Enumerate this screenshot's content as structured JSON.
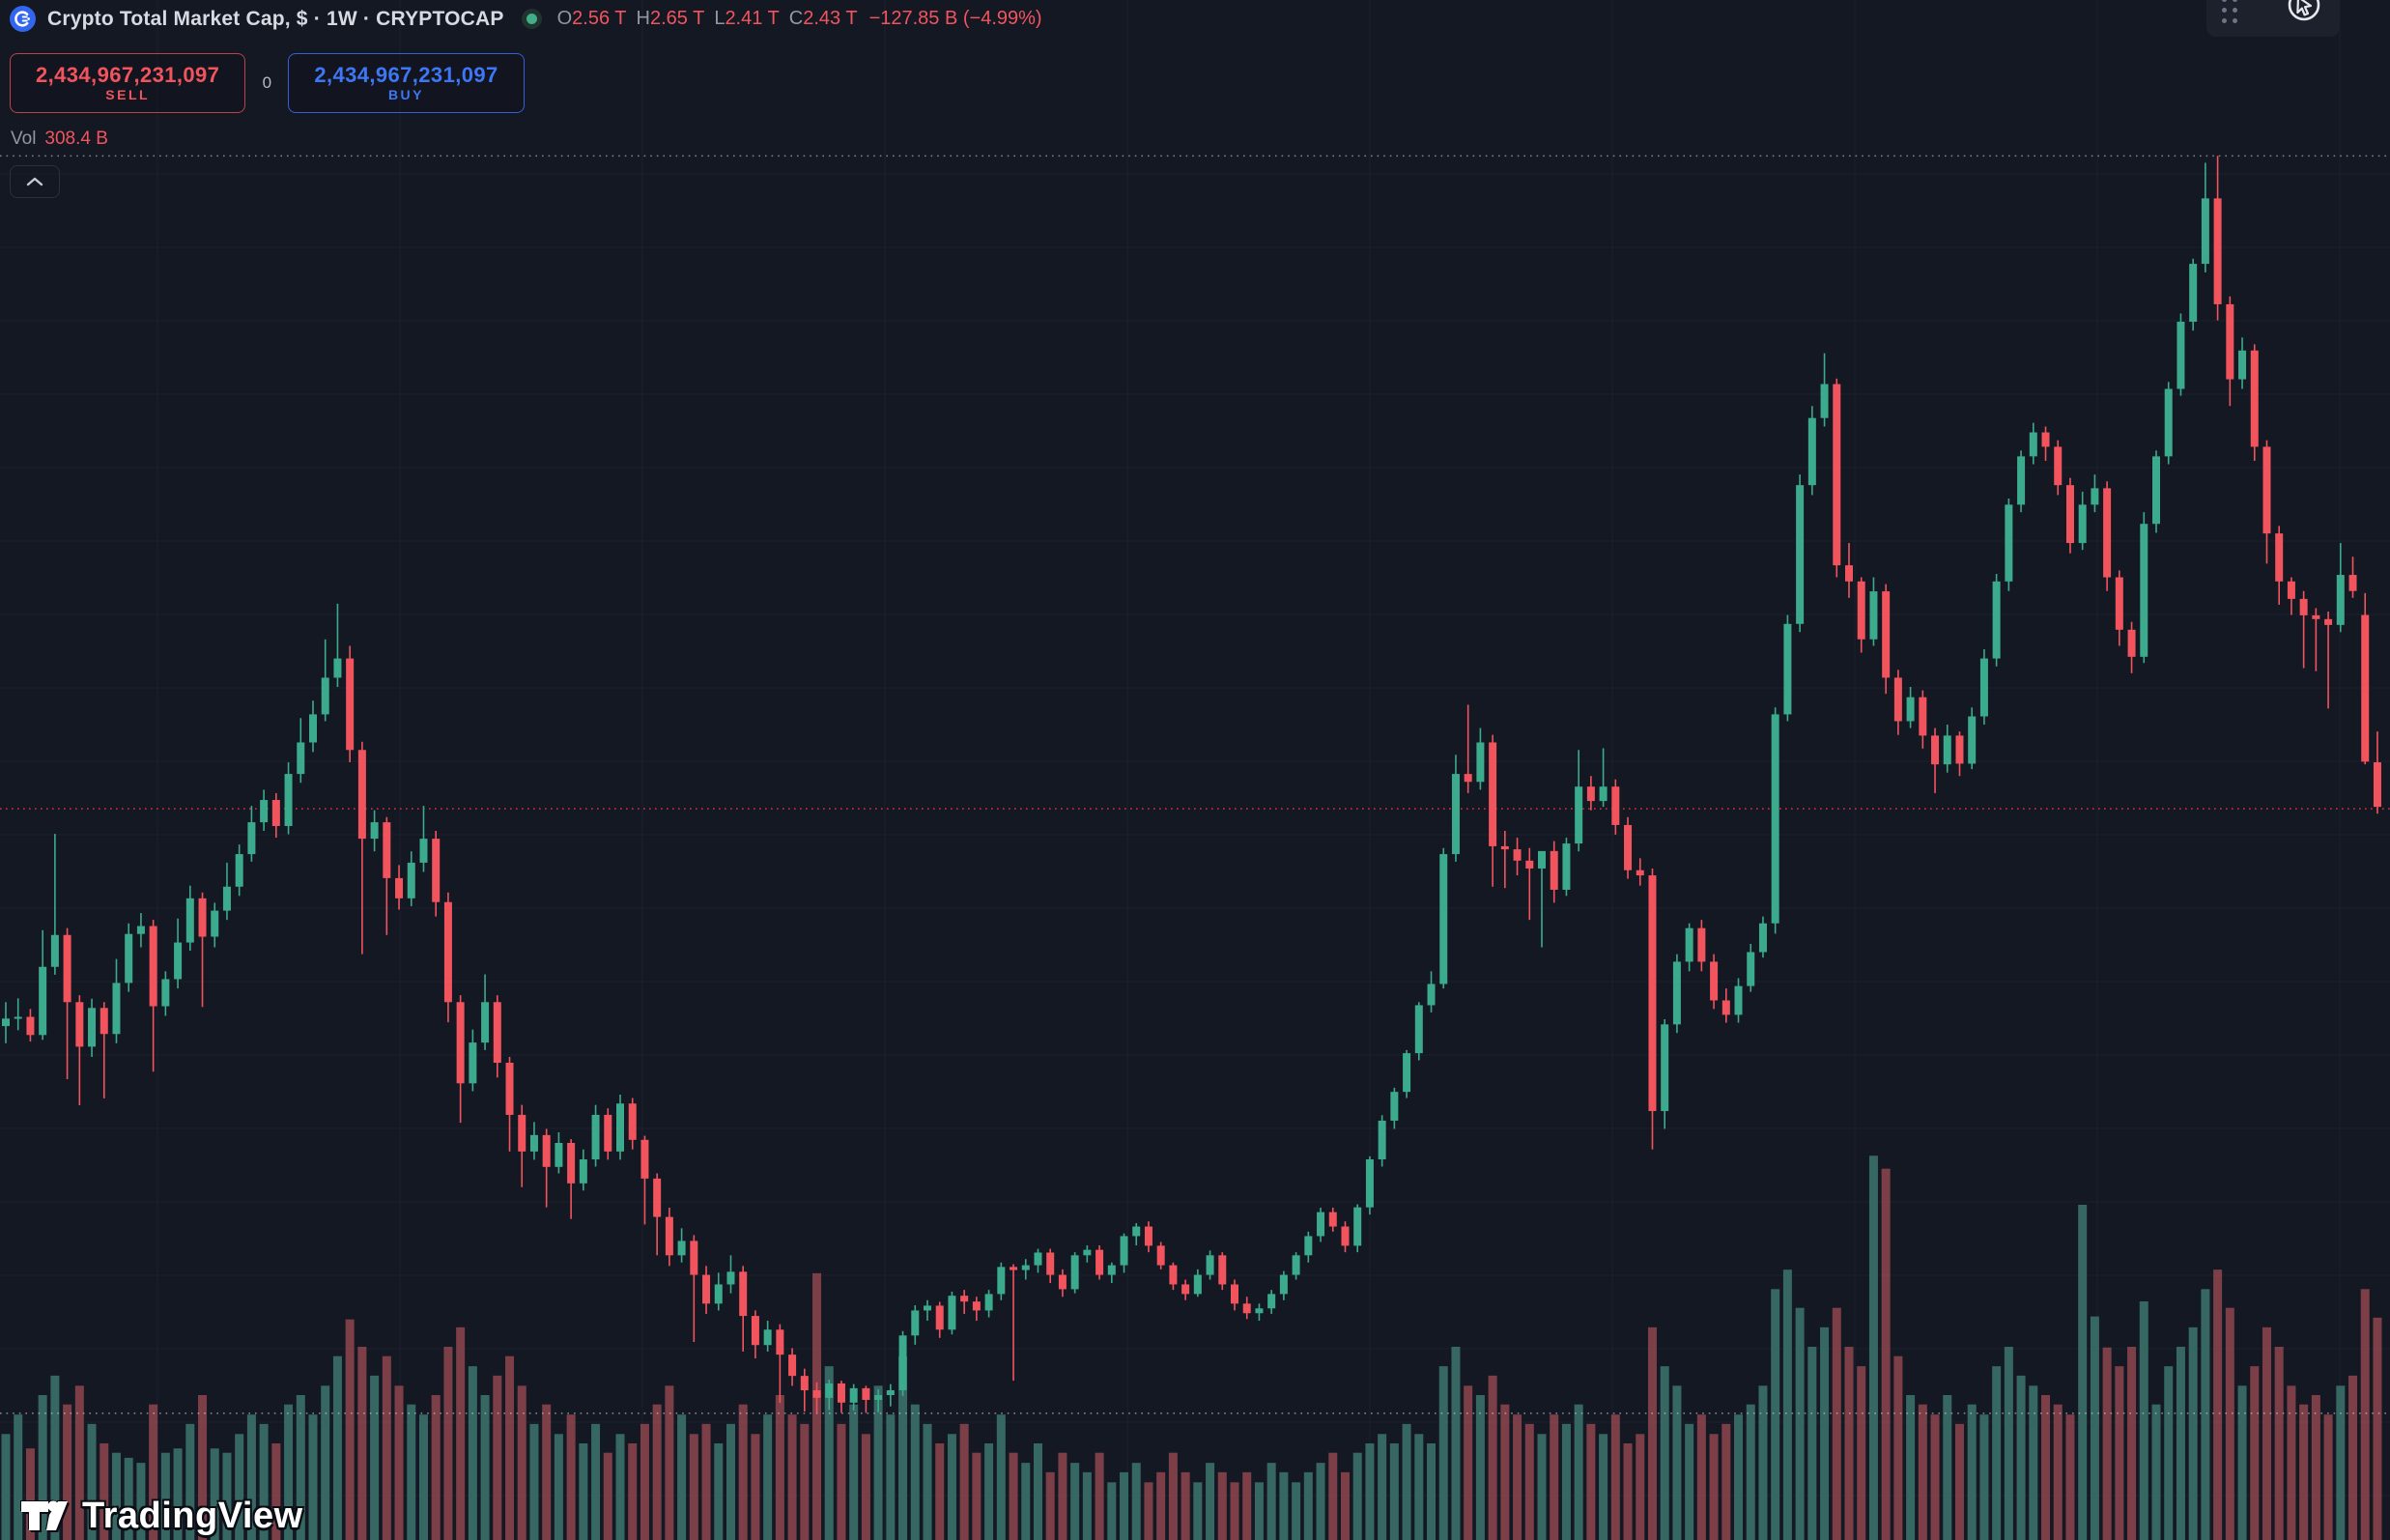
{
  "header": {
    "symbol_title": "Crypto Total Market Cap, $ · 1W · CRYPTOCAP",
    "ohlc": {
      "o_label": "O",
      "o": "2.56 T",
      "h_label": "H",
      "h": "2.65 T",
      "l_label": "L",
      "l": "2.41 T",
      "c_label": "C",
      "c": "2.43 T",
      "change": "−127.85 B (−4.99%)"
    }
  },
  "trade_panel": {
    "sell_value": "2,434,967,231,097",
    "sell_label": "SELL",
    "spread": "0",
    "buy_value": "2,434,967,231,097",
    "buy_label": "BUY"
  },
  "volume_row": {
    "label": "Vol",
    "value": "308.4 B"
  },
  "watermark": {
    "text": "TradingView"
  },
  "colors": {
    "background": "#141823",
    "grid": "rgba(170,180,210,0.06)",
    "up": "#3cab8d",
    "down": "#f2545e",
    "vol_up": "#3a6f68",
    "vol_down": "#86434b",
    "close_line": "#f23645",
    "range_line": "rgba(215,220,232,0.55)",
    "accent_buy": "#3d77f5",
    "accent_sell": "#f2545e"
  },
  "chart_data": {
    "type": "candlestick",
    "title": "Crypto Total Market Cap, $ · 1W · CRYPTOCAP",
    "units": "trillions USD (price), billions USD (volume)",
    "grid": true,
    "legend_position": "none",
    "ylim": [
      0.29,
      4.52
    ],
    "volume_axis_max": 2136,
    "levels": {
      "range_high": 4.33,
      "range_low": 0.66,
      "last_close": 2.43
    },
    "last_bar": {
      "open": 2.56,
      "high": 2.65,
      "low": 2.41,
      "close": 2.43,
      "change_abs": -127.85,
      "change_pct": -4.99,
      "volume_b": 308.4
    },
    "candles": [
      [
        1.79,
        1.86,
        1.74,
        1.812,
        147
      ],
      [
        1.812,
        1.871,
        1.778,
        1.817,
        174
      ],
      [
        1.817,
        1.84,
        1.745,
        1.764,
        127
      ],
      [
        1.764,
        2.07,
        1.75,
        1.963,
        201
      ],
      [
        1.963,
        2.351,
        1.94,
        2.056,
        228
      ],
      [
        2.056,
        2.076,
        1.635,
        1.86,
        188
      ],
      [
        1.86,
        1.88,
        1.559,
        1.73,
        214
      ],
      [
        1.73,
        1.87,
        1.7,
        1.843,
        161
      ],
      [
        1.843,
        1.86,
        1.579,
        1.767,
        134
      ],
      [
        1.767,
        1.986,
        1.74,
        1.916,
        121
      ],
      [
        1.916,
        2.09,
        1.89,
        2.059,
        114
      ],
      [
        2.059,
        2.12,
        2.02,
        2.082,
        107
      ],
      [
        2.082,
        2.1,
        1.657,
        1.848,
        188
      ],
      [
        1.848,
        1.95,
        1.82,
        1.927,
        121
      ],
      [
        1.927,
        2.104,
        1.9,
        2.034,
        127
      ],
      [
        2.034,
        2.2,
        2.01,
        2.163,
        161
      ],
      [
        2.163,
        2.18,
        1.846,
        2.051,
        201
      ],
      [
        2.051,
        2.15,
        2.02,
        2.127,
        127
      ],
      [
        2.127,
        2.267,
        2.1,
        2.197,
        121
      ],
      [
        2.197,
        2.32,
        2.17,
        2.292,
        147
      ],
      [
        2.292,
        2.433,
        2.27,
        2.385,
        174
      ],
      [
        2.385,
        2.48,
        2.36,
        2.45,
        161
      ],
      [
        2.45,
        2.47,
        2.34,
        2.374,
        134
      ],
      [
        2.374,
        2.56,
        2.35,
        2.526,
        188
      ],
      [
        2.526,
        2.689,
        2.5,
        2.618,
        201
      ],
      [
        2.618,
        2.74,
        2.59,
        2.7,
        174
      ],
      [
        2.7,
        2.919,
        2.68,
        2.807,
        214
      ],
      [
        2.807,
        3.023,
        2.78,
        2.863,
        255
      ],
      [
        2.863,
        2.9,
        2.56,
        2.596,
        306
      ],
      [
        2.596,
        2.62,
        2.0,
        2.337,
        268
      ],
      [
        2.337,
        2.42,
        2.3,
        2.385,
        228
      ],
      [
        2.385,
        2.4,
        2.056,
        2.222,
        255
      ],
      [
        2.222,
        2.26,
        2.13,
        2.163,
        214
      ],
      [
        2.163,
        2.3,
        2.14,
        2.267,
        188
      ],
      [
        2.267,
        2.433,
        2.24,
        2.337,
        174
      ],
      [
        2.337,
        2.36,
        2.11,
        2.152,
        201
      ],
      [
        2.152,
        2.18,
        1.801,
        1.86,
        268
      ],
      [
        1.86,
        1.88,
        1.508,
        1.623,
        295
      ],
      [
        1.623,
        1.78,
        1.6,
        1.742,
        241
      ],
      [
        1.742,
        1.941,
        1.72,
        1.86,
        201
      ],
      [
        1.86,
        1.88,
        1.64,
        1.683,
        228
      ],
      [
        1.683,
        1.7,
        1.424,
        1.531,
        255
      ],
      [
        1.531,
        1.56,
        1.32,
        1.424,
        214
      ],
      [
        1.424,
        1.51,
        1.4,
        1.472,
        161
      ],
      [
        1.472,
        1.49,
        1.261,
        1.379,
        188
      ],
      [
        1.379,
        1.48,
        1.36,
        1.449,
        147
      ],
      [
        1.449,
        1.46,
        1.227,
        1.331,
        174
      ],
      [
        1.331,
        1.43,
        1.31,
        1.401,
        134
      ],
      [
        1.401,
        1.56,
        1.38,
        1.531,
        161
      ],
      [
        1.531,
        1.55,
        1.4,
        1.424,
        121
      ],
      [
        1.424,
        1.59,
        1.4,
        1.564,
        147
      ],
      [
        1.564,
        1.58,
        1.43,
        1.458,
        134
      ],
      [
        1.458,
        1.47,
        1.211,
        1.345,
        161
      ],
      [
        1.345,
        1.36,
        1.121,
        1.233,
        188
      ],
      [
        1.233,
        1.26,
        1.09,
        1.121,
        214
      ],
      [
        1.121,
        1.2,
        1.1,
        1.163,
        174
      ],
      [
        1.163,
        1.18,
        0.868,
        1.064,
        147
      ],
      [
        1.064,
        1.09,
        0.95,
        0.98,
        161
      ],
      [
        0.98,
        1.07,
        0.96,
        1.036,
        134
      ],
      [
        1.036,
        1.121,
        1.01,
        1.073,
        161
      ],
      [
        1.073,
        1.09,
        0.84,
        0.944,
        188
      ],
      [
        0.944,
        0.96,
        0.82,
        0.859,
        147
      ],
      [
        0.859,
        0.93,
        0.84,
        0.904,
        174
      ],
      [
        0.904,
        0.92,
        0.69,
        0.831,
        201
      ],
      [
        0.831,
        0.85,
        0.74,
        0.769,
        174
      ],
      [
        0.769,
        0.79,
        0.665,
        0.727,
        161
      ],
      [
        0.727,
        0.75,
        0.662,
        0.705,
        370
      ],
      [
        0.705,
        0.758,
        0.67,
        0.747,
        241
      ],
      [
        0.747,
        0.755,
        0.661,
        0.691,
        161
      ],
      [
        0.691,
        0.745,
        0.668,
        0.733,
        188
      ],
      [
        0.733,
        0.74,
        0.661,
        0.699,
        147
      ],
      [
        0.699,
        0.73,
        0.663,
        0.713,
        214
      ],
      [
        0.713,
        0.745,
        0.68,
        0.727,
        174
      ],
      [
        0.727,
        0.9,
        0.71,
        0.887,
        255
      ],
      [
        0.887,
        0.975,
        0.86,
        0.96,
        188
      ],
      [
        0.96,
        0.99,
        0.93,
        0.974,
        161
      ],
      [
        0.974,
        0.985,
        0.88,
        0.904,
        134
      ],
      [
        0.904,
        1.015,
        0.89,
        1.003,
        147
      ],
      [
        1.003,
        1.02,
        0.95,
        0.986,
        161
      ],
      [
        0.986,
        1.0,
        0.93,
        0.96,
        121
      ],
      [
        0.96,
        1.02,
        0.94,
        1.008,
        134
      ],
      [
        1.008,
        1.1,
        0.99,
        1.087,
        174
      ],
      [
        1.087,
        1.095,
        0.755,
        1.078,
        121
      ],
      [
        1.078,
        1.11,
        1.05,
        1.092,
        107
      ],
      [
        1.092,
        1.14,
        1.07,
        1.129,
        134
      ],
      [
        1.129,
        1.14,
        1.04,
        1.064,
        94
      ],
      [
        1.064,
        1.08,
        1.0,
        1.022,
        121
      ],
      [
        1.022,
        1.13,
        1.01,
        1.121,
        107
      ],
      [
        1.121,
        1.15,
        1.1,
        1.137,
        94
      ],
      [
        1.137,
        1.15,
        1.05,
        1.064,
        121
      ],
      [
        1.064,
        1.1,
        1.04,
        1.092,
        80
      ],
      [
        1.092,
        1.185,
        1.07,
        1.177,
        94
      ],
      [
        1.177,
        1.215,
        1.15,
        1.205,
        107
      ],
      [
        1.205,
        1.22,
        1.13,
        1.149,
        80
      ],
      [
        1.149,
        1.16,
        1.08,
        1.092,
        94
      ],
      [
        1.092,
        1.1,
        1.02,
        1.036,
        121
      ],
      [
        1.036,
        1.05,
        0.99,
        1.008,
        94
      ],
      [
        1.008,
        1.08,
        1.0,
        1.064,
        80
      ],
      [
        1.064,
        1.135,
        1.05,
        1.121,
        107
      ],
      [
        1.121,
        1.13,
        1.02,
        1.036,
        94
      ],
      [
        1.036,
        1.05,
        0.96,
        0.98,
        80
      ],
      [
        0.98,
        1.0,
        0.935,
        0.952,
        94
      ],
      [
        0.952,
        0.98,
        0.93,
        0.966,
        80
      ],
      [
        0.966,
        1.02,
        0.95,
        1.008,
        107
      ],
      [
        1.008,
        1.075,
        0.99,
        1.064,
        94
      ],
      [
        1.064,
        1.13,
        1.05,
        1.121,
        80
      ],
      [
        1.121,
        1.19,
        1.1,
        1.177,
        94
      ],
      [
        1.177,
        1.26,
        1.16,
        1.247,
        107
      ],
      [
        1.247,
        1.26,
        1.19,
        1.205,
        121
      ],
      [
        1.205,
        1.22,
        1.13,
        1.149,
        94
      ],
      [
        1.149,
        1.27,
        1.13,
        1.261,
        121
      ],
      [
        1.261,
        1.41,
        1.24,
        1.401,
        134
      ],
      [
        1.401,
        1.53,
        1.38,
        1.514,
        147
      ],
      [
        1.514,
        1.61,
        1.49,
        1.598,
        134
      ],
      [
        1.598,
        1.72,
        1.58,
        1.711,
        161
      ],
      [
        1.711,
        1.86,
        1.69,
        1.851,
        147
      ],
      [
        1.851,
        1.95,
        1.83,
        1.913,
        134
      ],
      [
        1.913,
        2.31,
        1.9,
        2.292,
        241
      ],
      [
        2.292,
        2.582,
        2.27,
        2.526,
        268
      ],
      [
        2.526,
        2.728,
        2.47,
        2.503,
        214
      ],
      [
        2.503,
        2.66,
        2.48,
        2.618,
        201
      ],
      [
        2.618,
        2.64,
        2.197,
        2.315,
        228
      ],
      [
        2.315,
        2.36,
        2.193,
        2.306,
        188
      ],
      [
        2.306,
        2.34,
        2.23,
        2.273,
        174
      ],
      [
        2.273,
        2.31,
        2.1,
        2.25,
        161
      ],
      [
        2.25,
        2.3,
        2.02,
        2.301,
        147
      ],
      [
        2.301,
        2.33,
        2.15,
        2.188,
        174
      ],
      [
        2.188,
        2.34,
        2.17,
        2.323,
        161
      ],
      [
        2.323,
        2.596,
        2.3,
        2.489,
        188
      ],
      [
        2.489,
        2.52,
        2.42,
        2.447,
        161
      ],
      [
        2.447,
        2.601,
        2.43,
        2.489,
        147
      ],
      [
        2.489,
        2.51,
        2.349,
        2.377,
        174
      ],
      [
        2.377,
        2.4,
        2.22,
        2.245,
        134
      ],
      [
        2.245,
        2.28,
        2.2,
        2.23,
        147
      ],
      [
        2.23,
        2.25,
        1.43,
        1.542,
        295
      ],
      [
        1.542,
        1.81,
        1.49,
        1.795,
        241
      ],
      [
        1.795,
        2.0,
        1.77,
        1.978,
        214
      ],
      [
        1.978,
        2.09,
        1.95,
        2.076,
        161
      ],
      [
        2.076,
        2.1,
        1.95,
        1.978,
        174
      ],
      [
        1.978,
        2.0,
        1.84,
        1.865,
        147
      ],
      [
        1.865,
        1.9,
        1.8,
        1.823,
        161
      ],
      [
        1.823,
        1.93,
        1.8,
        1.907,
        174
      ],
      [
        1.907,
        2.03,
        1.89,
        2.006,
        188
      ],
      [
        2.006,
        2.11,
        1.99,
        2.09,
        214
      ],
      [
        2.09,
        2.72,
        2.06,
        2.7,
        348
      ],
      [
        2.7,
        2.99,
        2.68,
        2.964,
        375
      ],
      [
        2.964,
        3.4,
        2.94,
        3.369,
        322
      ],
      [
        3.369,
        3.6,
        3.34,
        3.565,
        268
      ],
      [
        3.565,
        3.754,
        3.54,
        3.664,
        295
      ],
      [
        3.664,
        3.68,
        3.1,
        3.135,
        322
      ],
      [
        3.135,
        3.2,
        3.04,
        3.088,
        268
      ],
      [
        3.088,
        3.1,
        2.88,
        2.919,
        241
      ],
      [
        2.919,
        3.1,
        2.9,
        3.059,
        533
      ],
      [
        3.059,
        3.08,
        2.76,
        2.807,
        515
      ],
      [
        2.807,
        2.83,
        2.64,
        2.68,
        255
      ],
      [
        2.68,
        2.78,
        2.66,
        2.75,
        201
      ],
      [
        2.75,
        2.77,
        2.6,
        2.638,
        188
      ],
      [
        2.638,
        2.66,
        2.47,
        2.554,
        174
      ],
      [
        2.554,
        2.67,
        2.53,
        2.638,
        201
      ],
      [
        2.638,
        2.65,
        2.52,
        2.556,
        161
      ],
      [
        2.556,
        2.72,
        2.54,
        2.694,
        188
      ],
      [
        2.694,
        2.89,
        2.67,
        2.863,
        174
      ],
      [
        2.863,
        3.11,
        2.84,
        3.088,
        241
      ],
      [
        3.088,
        3.33,
        3.06,
        3.312,
        268
      ],
      [
        3.312,
        3.47,
        3.29,
        3.453,
        228
      ],
      [
        3.453,
        3.551,
        3.43,
        3.523,
        214
      ],
      [
        3.523,
        3.54,
        3.44,
        3.481,
        201
      ],
      [
        3.481,
        3.5,
        3.34,
        3.369,
        188
      ],
      [
        3.369,
        3.39,
        3.17,
        3.2,
        174
      ],
      [
        3.2,
        3.35,
        3.18,
        3.312,
        465
      ],
      [
        3.312,
        3.4,
        3.29,
        3.36,
        310
      ],
      [
        3.36,
        3.38,
        3.06,
        3.1,
        267
      ],
      [
        3.1,
        3.12,
        2.9,
        2.947,
        241
      ],
      [
        2.947,
        2.97,
        2.82,
        2.868,
        268
      ],
      [
        2.868,
        3.29,
        2.85,
        3.256,
        331
      ],
      [
        3.256,
        3.47,
        3.23,
        3.453,
        188
      ],
      [
        3.453,
        3.67,
        3.43,
        3.65,
        241
      ],
      [
        3.65,
        3.87,
        3.63,
        3.846,
        268
      ],
      [
        3.846,
        4.03,
        3.82,
        4.015,
        295
      ],
      [
        4.015,
        4.31,
        3.99,
        4.206,
        348
      ],
      [
        4.206,
        4.33,
        3.85,
        3.897,
        375
      ],
      [
        3.897,
        3.92,
        3.6,
        3.678,
        322
      ],
      [
        3.678,
        3.8,
        3.65,
        3.762,
        214
      ],
      [
        3.762,
        3.78,
        3.44,
        3.481,
        241
      ],
      [
        3.481,
        3.5,
        3.14,
        3.228,
        295
      ],
      [
        3.228,
        3.25,
        3.02,
        3.088,
        268
      ],
      [
        3.088,
        3.1,
        2.99,
        3.037,
        214
      ],
      [
        3.037,
        3.06,
        2.835,
        2.989,
        188
      ],
      [
        2.989,
        3.01,
        2.826,
        2.978,
        201
      ],
      [
        2.978,
        3.0,
        2.717,
        2.961,
        174
      ],
      [
        2.961,
        3.2,
        2.94,
        3.107,
        214
      ],
      [
        3.107,
        3.16,
        3.04,
        3.06,
        228
      ],
      [
        2.99,
        3.054,
        2.554,
        2.562,
        348
      ],
      [
        2.56,
        2.65,
        2.41,
        2.43,
        308.4
      ]
    ]
  }
}
